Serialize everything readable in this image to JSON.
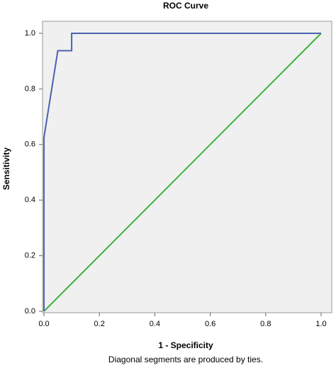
{
  "chart_data": {
    "type": "line",
    "title": "ROC Curve",
    "x_label": "1 - Specificity",
    "y_label": "Sensitivity",
    "footnote": "Diagonal segments are produced by ties.",
    "xlim": [
      0,
      1.04
    ],
    "ylim": [
      0,
      1.04
    ],
    "xticks": [
      {
        "value": 0,
        "label": "0.0"
      },
      0.2,
      0.4,
      0.6,
      0.8,
      {
        "value": 1,
        "label": "1.0"
      }
    ],
    "yticks": [
      {
        "value": 0,
        "label": "0.0"
      },
      0.2,
      0.4,
      0.6,
      0.8,
      {
        "value": 1,
        "label": "1.0"
      }
    ],
    "series": [
      {
        "color": "#4a63b0",
        "x": [
          0,
          0,
          0.05,
          0.1,
          0.1,
          1
        ],
        "values": [
          0,
          0.625,
          0.9375,
          0.9375,
          1,
          1
        ]
      },
      {
        "color": "#3cb33c",
        "x": [
          0,
          1
        ],
        "values": [
          0,
          1
        ]
      }
    ]
  }
}
